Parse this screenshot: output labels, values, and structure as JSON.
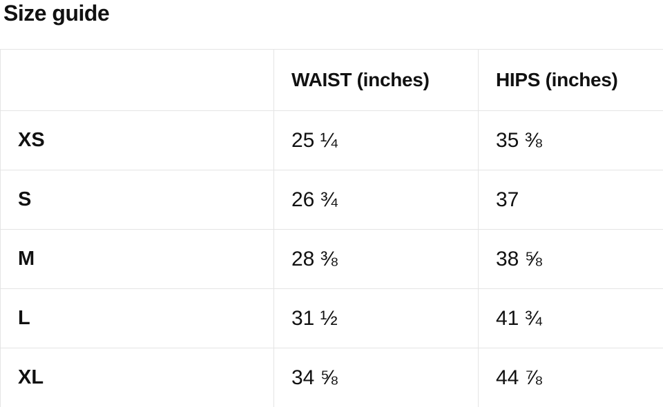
{
  "page": {
    "title": "Size guide"
  },
  "table": {
    "columns": [
      "",
      "WAIST (inches)",
      "HIPS (inches)"
    ],
    "rows": [
      {
        "size": "XS",
        "waist": "25 ¼",
        "hips": "35 ⅜"
      },
      {
        "size": "S",
        "waist": "26 ¾",
        "hips": "37"
      },
      {
        "size": "M",
        "waist": "28 ⅜",
        "hips": "38 ⅝"
      },
      {
        "size": "L",
        "waist": "31 ½",
        "hips": "41 ¾"
      },
      {
        "size": "XL",
        "waist": "34 ⅝",
        "hips": "44 ⅞"
      }
    ]
  },
  "colors": {
    "text": "#111111",
    "border": "#e4e4e4",
    "background": "#ffffff"
  }
}
